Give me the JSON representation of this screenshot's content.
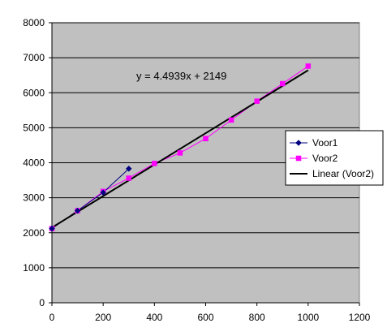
{
  "chart_data": {
    "type": "scatter",
    "title": "",
    "xlabel": "",
    "ylabel": "",
    "xlim": [
      0,
      1200
    ],
    "ylim": [
      0,
      8000
    ],
    "x_ticks": [
      0,
      200,
      400,
      600,
      800,
      1000,
      1200
    ],
    "y_ticks": [
      0,
      1000,
      2000,
      3000,
      4000,
      5000,
      6000,
      7000,
      8000
    ],
    "grid": "horizontal",
    "plot_background": "#c0c0c0",
    "legend_position": "right",
    "series": [
      {
        "name": "Voor1",
        "color": "#000080",
        "marker": "diamond",
        "x": [
          0,
          100,
          200,
          300
        ],
        "y": [
          2120,
          2630,
          3150,
          3830
        ]
      },
      {
        "name": "Voor2",
        "color": "#ff00ff",
        "marker": "square",
        "x": [
          0,
          100,
          200,
          300,
          400,
          500,
          600,
          700,
          800,
          900,
          1000
        ],
        "y": [
          2120,
          2630,
          3180,
          3560,
          3980,
          4280,
          4690,
          5220,
          5760,
          6260,
          6760
        ]
      }
    ],
    "trendline": {
      "name": "Linear (Voor2)",
      "color": "#000000",
      "slope": 4.4939,
      "intercept": 2149,
      "x_range": [
        0,
        1000
      ],
      "equation_label": "y = 4.4939x + 2149"
    }
  }
}
